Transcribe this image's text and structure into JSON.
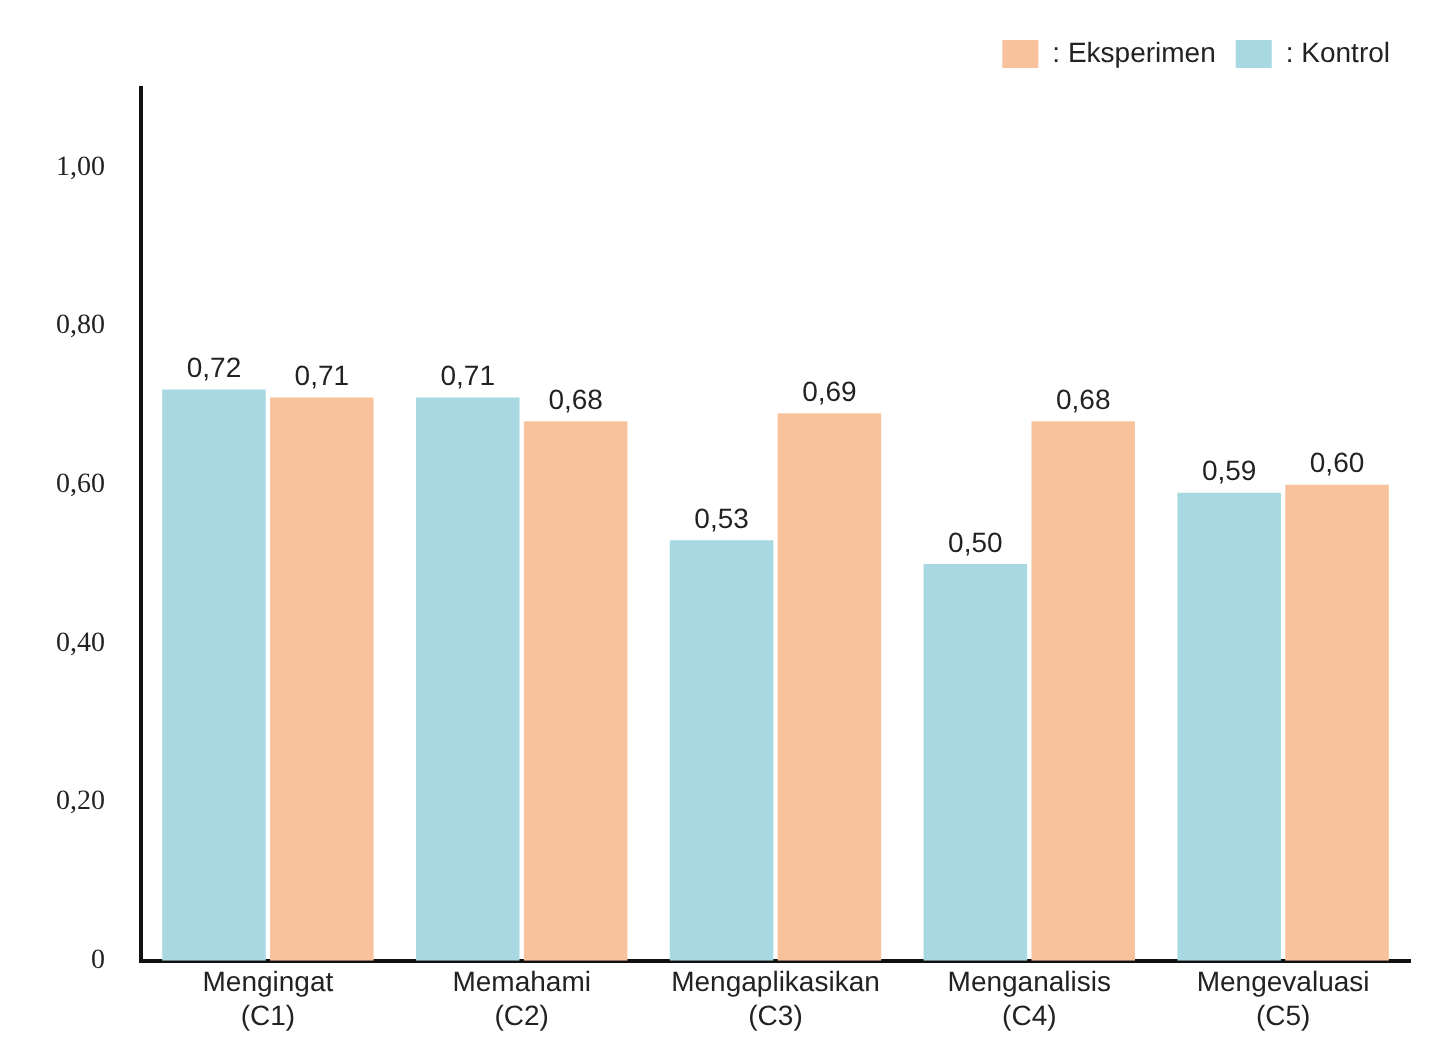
{
  "chart_data": {
    "type": "bar",
    "categories": [
      "Mengingat (C1)",
      "Memahami (C2)",
      "Mengaplikasikan (C3)",
      "Menganalisis (C4)",
      "Mengevaluasi (C5)"
    ],
    "series": [
      {
        "name": ": Kontrol",
        "color": "#a8d9e3",
        "values": [
          0.72,
          0.71,
          0.53,
          0.5,
          0.59
        ],
        "value_labels": [
          "0,72",
          "0,71",
          "0,53",
          "0,50",
          "0,59"
        ]
      },
      {
        "name": ": Eksperimen",
        "color": "#f8c39c",
        "values": [
          0.71,
          0.68,
          0.69,
          0.68,
          0.6
        ],
        "value_labels": [
          "0,71",
          "0,68",
          "0,69",
          "0,68",
          "0,60"
        ]
      }
    ],
    "ylim": [
      0,
      1.1
    ],
    "yticks": [
      {
        "value": 0,
        "label": "0"
      },
      {
        "value": 0.2,
        "label": "0,20"
      },
      {
        "value": 0.4,
        "label": "0,40"
      },
      {
        "value": 0.6,
        "label": "0,60"
      },
      {
        "value": 0.8,
        "label": "0,80"
      },
      {
        "value": 1,
        "label": "1,00"
      }
    ],
    "grid": false,
    "legend": "top right"
  }
}
